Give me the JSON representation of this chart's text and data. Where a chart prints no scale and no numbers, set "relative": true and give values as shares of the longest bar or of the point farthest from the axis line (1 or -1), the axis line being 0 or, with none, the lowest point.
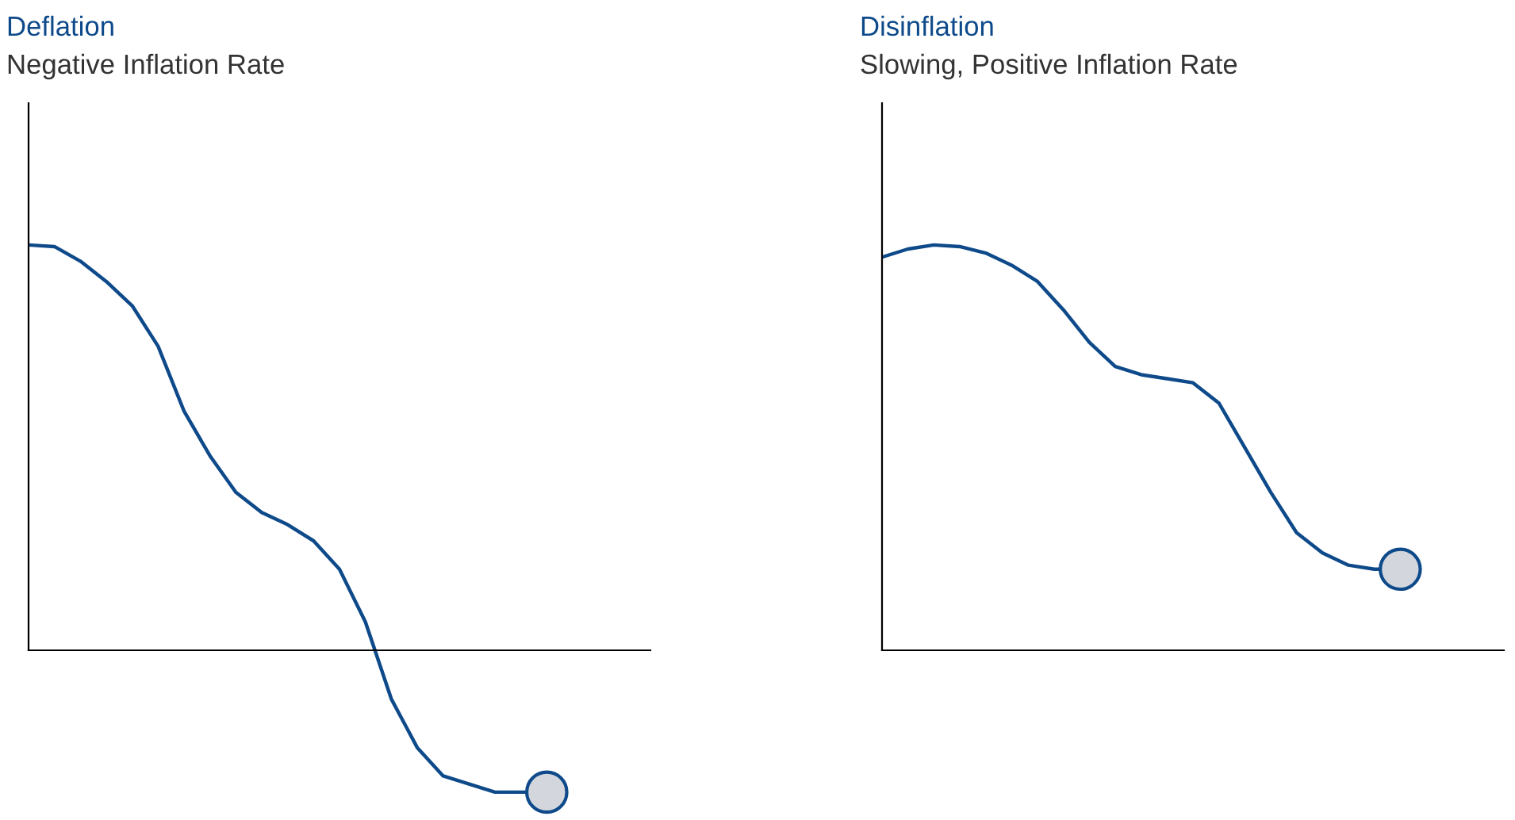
{
  "chart_data": [
    {
      "type": "line",
      "title": "Deflation",
      "subtitle": "Negative Inflation Rate",
      "relative": true,
      "grid": false,
      "legend": false,
      "categories": [
        null,
        null,
        null,
        null,
        null,
        null,
        null,
        null,
        null,
        null,
        null,
        null,
        null,
        null,
        null,
        null,
        null,
        null,
        null,
        null,
        null
      ],
      "series": [
        {
          "color": "#0e4a8a",
          "marker": "none",
          "values": [
            1.0,
            0.996,
            0.96,
            0.91,
            0.85,
            0.75,
            0.59,
            0.48,
            0.39,
            0.34,
            0.31,
            0.27,
            0.2,
            0.07,
            -0.12,
            -0.24,
            -0.31,
            -0.33,
            -0.35,
            -0.35,
            -0.35
          ]
        }
      ]
    },
    {
      "type": "line",
      "title": "Disinflation",
      "subtitle": "Slowing, Positive Inflation Rate",
      "relative": true,
      "grid": false,
      "legend": false,
      "categories": [
        null,
        null,
        null,
        null,
        null,
        null,
        null,
        null,
        null,
        null,
        null,
        null,
        null,
        null,
        null,
        null,
        null,
        null,
        null,
        null,
        null
      ],
      "series": [
        {
          "color": "#0e4a8a",
          "marker": "none",
          "values": [
            0.97,
            0.99,
            1.0,
            0.996,
            0.98,
            0.95,
            0.91,
            0.84,
            0.76,
            0.7,
            0.68,
            0.67,
            0.66,
            0.61,
            0.5,
            0.39,
            0.29,
            0.24,
            0.21,
            0.2,
            0.2
          ]
        }
      ]
    }
  ]
}
